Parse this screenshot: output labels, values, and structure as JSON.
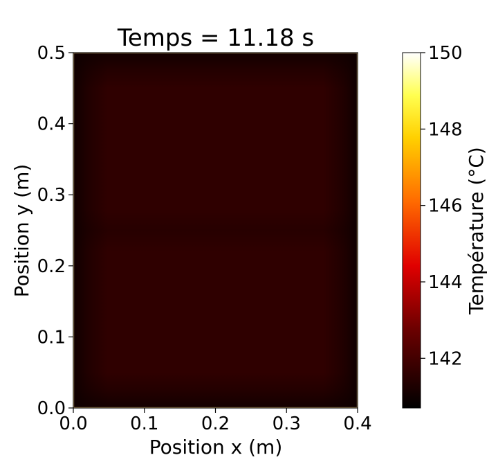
{
  "chart_data": {
    "type": "heatmap",
    "title": "Temps = 11.18 s",
    "xlabel": "Position x (m)",
    "ylabel": "Position y (m)",
    "xlim": [
      0.0,
      0.4
    ],
    "ylim": [
      0.0,
      0.5
    ],
    "xticks": [
      "0.0",
      "0.1",
      "0.2",
      "0.3",
      "0.4"
    ],
    "yticks": [
      "0.0",
      "0.1",
      "0.2",
      "0.3",
      "0.4",
      "0.5"
    ],
    "colormap": "hot",
    "colorbar": {
      "label": "Température (°C)",
      "range": [
        140.7,
        150
      ],
      "ticks": [
        142,
        144,
        146,
        148,
        150
      ],
      "tick_labels": [
        "142",
        "144",
        "146",
        "148",
        "150"
      ]
    },
    "field": {
      "interior_value": 141.45,
      "edge_value": 140.9,
      "boundary_value": 150,
      "description_values": "nearly uniform interior temperature with slightly cooler regions near the edges and a thin hot boundary"
    }
  },
  "colors": {
    "hot_0": "#0a0000",
    "hot_1": "#2e0000",
    "hot_2": "#b00000",
    "hot_3": "#ff2a00",
    "hot_4": "#ff9a00",
    "hot_5": "#ffff20",
    "hot_6": "#ffffff"
  }
}
